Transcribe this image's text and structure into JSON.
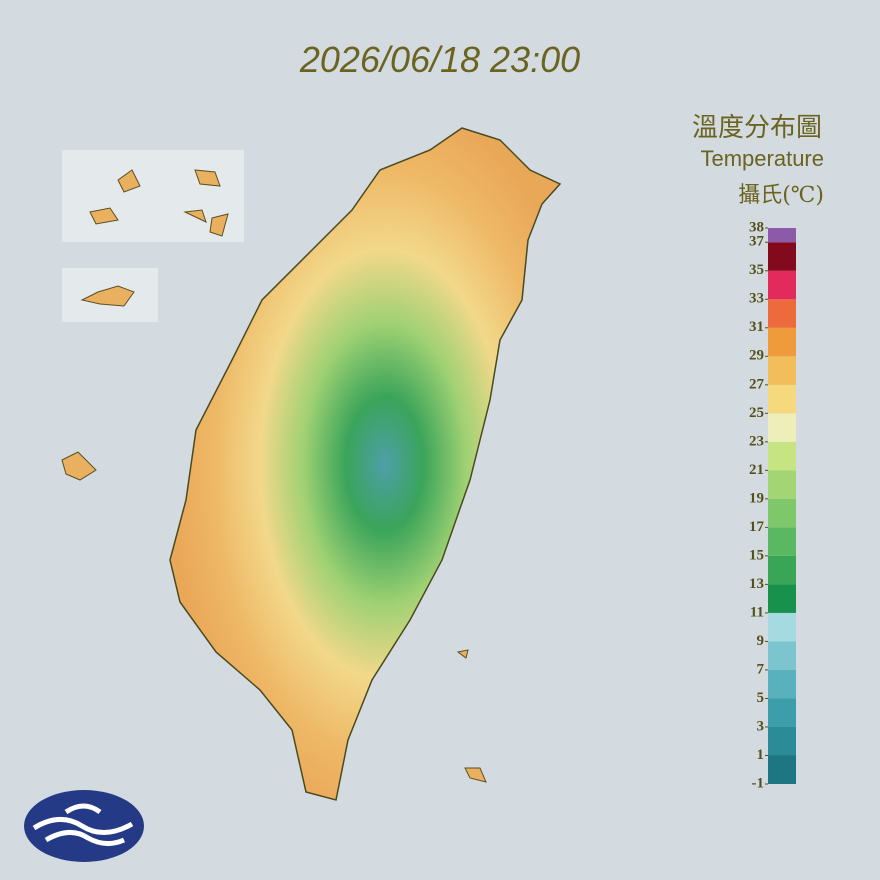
{
  "header": {
    "time": "2026/06/18 23:00",
    "title": "溫度分布圖",
    "subtitle": "Temperature",
    "unit": "攝氏(℃)"
  },
  "legend": {
    "range": [
      -1,
      38
    ],
    "ticks": [
      38,
      37,
      35,
      33,
      31,
      29,
      27,
      25,
      23,
      21,
      19,
      17,
      15,
      13,
      11,
      9,
      7,
      5,
      3,
      1,
      -1
    ],
    "bins": [
      -1,
      1,
      3,
      5,
      7,
      9,
      11,
      13,
      15,
      17,
      19,
      21,
      23,
      25,
      27,
      29,
      31,
      33,
      35,
      37,
      38
    ],
    "colors": [
      "#1f7683",
      "#2b8b97",
      "#3c9eab",
      "#58b1bd",
      "#7cc4ce",
      "#a6dae1",
      "#18914c",
      "#38a557",
      "#5bb862",
      "#7fc76b",
      "#a4d574",
      "#c6e482",
      "#eeeeba",
      "#f5d97c",
      "#f2bd5b",
      "#ef9b3b",
      "#ec6a3b",
      "#e32a5c",
      "#820a1c",
      "#8c5aa8"
    ]
  }
}
